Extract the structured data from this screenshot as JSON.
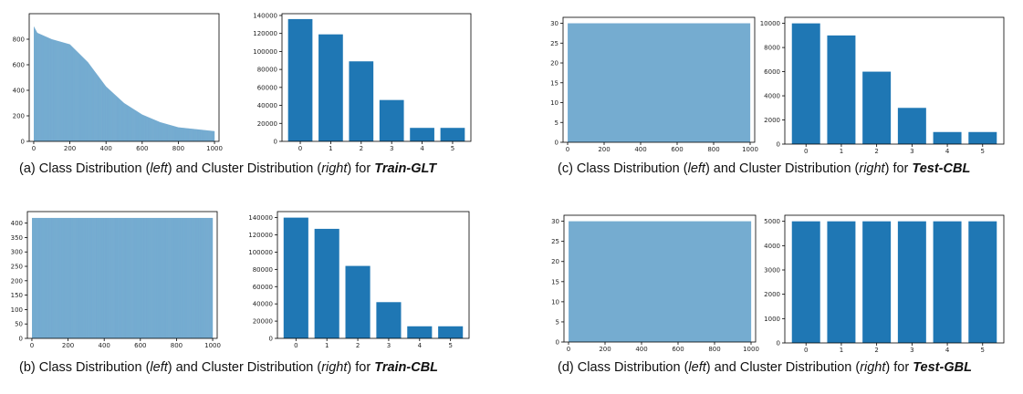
{
  "colors": {
    "bar": "#1f77b4",
    "axis": "#000000",
    "tick_text": "#222222"
  },
  "captions": {
    "a": {
      "prefix": "(a) Class Distribution (",
      "left": "left",
      "mid": ") and Cluster Distribution (",
      "right": "right",
      "suffix": ") for ",
      "dataset": "Train-GLT"
    },
    "b": {
      "prefix": "(b) Class Distribution (",
      "left": "left",
      "mid": ") and Cluster Distribution (",
      "right": "right",
      "suffix": ") for ",
      "dataset": "Train-CBL"
    },
    "c": {
      "prefix": "(c) Class Distribution (",
      "left": "left",
      "mid": ") and Cluster Distribution (",
      "right": "right",
      "suffix": ") for ",
      "dataset": "Test-CBL"
    },
    "d": {
      "prefix": "(d) Class Distribution (",
      "left": "left",
      "mid": ") and Cluster Distribution (",
      "right": "right",
      "suffix": ") for ",
      "dataset": "Test-GBL"
    }
  },
  "chart_data": [
    {
      "id": "a-class",
      "type": "bar",
      "title": "",
      "xlabel": "",
      "ylabel": "",
      "x_range": [
        1,
        1000
      ],
      "num_classes": 1000,
      "distribution": "long-tail",
      "values_first_to_last": [
        900,
        850,
        800,
        760,
        620,
        430,
        300,
        210,
        150,
        110,
        80
      ],
      "sample_positions": [
        1,
        20,
        100,
        200,
        300,
        400,
        500,
        600,
        700,
        800,
        1000
      ],
      "xlim": [
        -25,
        1025
      ],
      "ylim": [
        0,
        1000
      ],
      "xticks": [
        "0",
        "200",
        "400",
        "600",
        "800",
        "1000"
      ],
      "yticks": [
        "0",
        "200",
        "400",
        "600",
        "800"
      ],
      "grid": false
    },
    {
      "id": "a-cluster",
      "type": "bar",
      "title": "",
      "xlabel": "",
      "ylabel": "",
      "categories": [
        "0",
        "1",
        "2",
        "3",
        "4",
        "5"
      ],
      "values": [
        136000,
        119000,
        89000,
        46000,
        15000,
        15000
      ],
      "ylim": [
        0,
        142000
      ],
      "yticks": [
        "0",
        "20000",
        "40000",
        "60000",
        "80000",
        "100000",
        "120000",
        "140000"
      ],
      "grid": false
    },
    {
      "id": "b-class",
      "type": "bar",
      "title": "",
      "xlabel": "",
      "ylabel": "",
      "x_range": [
        1,
        1000
      ],
      "num_classes": 1000,
      "distribution": "uniform",
      "value": 418,
      "xlim": [
        -25,
        1025
      ],
      "ylim": [
        0,
        440
      ],
      "xticks": [
        "0",
        "200",
        "400",
        "600",
        "800",
        "1000"
      ],
      "yticks": [
        "0",
        "50",
        "100",
        "150",
        "200",
        "250",
        "300",
        "350",
        "400"
      ],
      "grid": false
    },
    {
      "id": "b-cluster",
      "type": "bar",
      "title": "",
      "xlabel": "",
      "ylabel": "",
      "categories": [
        "0",
        "1",
        "2",
        "3",
        "4",
        "5"
      ],
      "values": [
        140000,
        127000,
        84000,
        42000,
        14000,
        14000
      ],
      "ylim": [
        0,
        147000
      ],
      "yticks": [
        "0",
        "20000",
        "40000",
        "60000",
        "80000",
        "100000",
        "120000",
        "140000"
      ],
      "grid": false
    },
    {
      "id": "c-class",
      "type": "bar",
      "title": "",
      "xlabel": "",
      "ylabel": "",
      "x_range": [
        1,
        1000
      ],
      "num_classes": 1000,
      "distribution": "uniform",
      "value": 30,
      "xlim": [
        -25,
        1025
      ],
      "ylim": [
        0,
        31.5
      ],
      "xticks": [
        "0",
        "200",
        "400",
        "600",
        "800",
        "1000"
      ],
      "yticks": [
        "0",
        "5",
        "10",
        "15",
        "20",
        "25",
        "30"
      ],
      "grid": false
    },
    {
      "id": "c-cluster",
      "type": "bar",
      "title": "",
      "xlabel": "",
      "ylabel": "",
      "categories": [
        "0",
        "1",
        "2",
        "3",
        "4",
        "5"
      ],
      "values": [
        10000,
        9000,
        6000,
        3000,
        1000,
        1000
      ],
      "ylim": [
        0,
        10500
      ],
      "yticks": [
        "0",
        "2000",
        "4000",
        "6000",
        "8000",
        "10000"
      ],
      "grid": false
    },
    {
      "id": "d-class",
      "type": "bar",
      "title": "",
      "xlabel": "",
      "ylabel": "",
      "x_range": [
        1,
        1000
      ],
      "num_classes": 1000,
      "distribution": "uniform",
      "value": 30,
      "xlim": [
        -25,
        1025
      ],
      "ylim": [
        0,
        31.5
      ],
      "xticks": [
        "0",
        "200",
        "400",
        "600",
        "800",
        "1000"
      ],
      "yticks": [
        "0",
        "5",
        "10",
        "15",
        "20",
        "25",
        "30"
      ],
      "grid": false
    },
    {
      "id": "d-cluster",
      "type": "bar",
      "title": "",
      "xlabel": "",
      "ylabel": "",
      "categories": [
        "0",
        "1",
        "2",
        "3",
        "4",
        "5"
      ],
      "values": [
        5000,
        5000,
        5000,
        5000,
        5000,
        5000
      ],
      "ylim": [
        0,
        5250
      ],
      "yticks": [
        "0",
        "1000",
        "2000",
        "3000",
        "4000",
        "5000"
      ],
      "grid": false
    }
  ]
}
